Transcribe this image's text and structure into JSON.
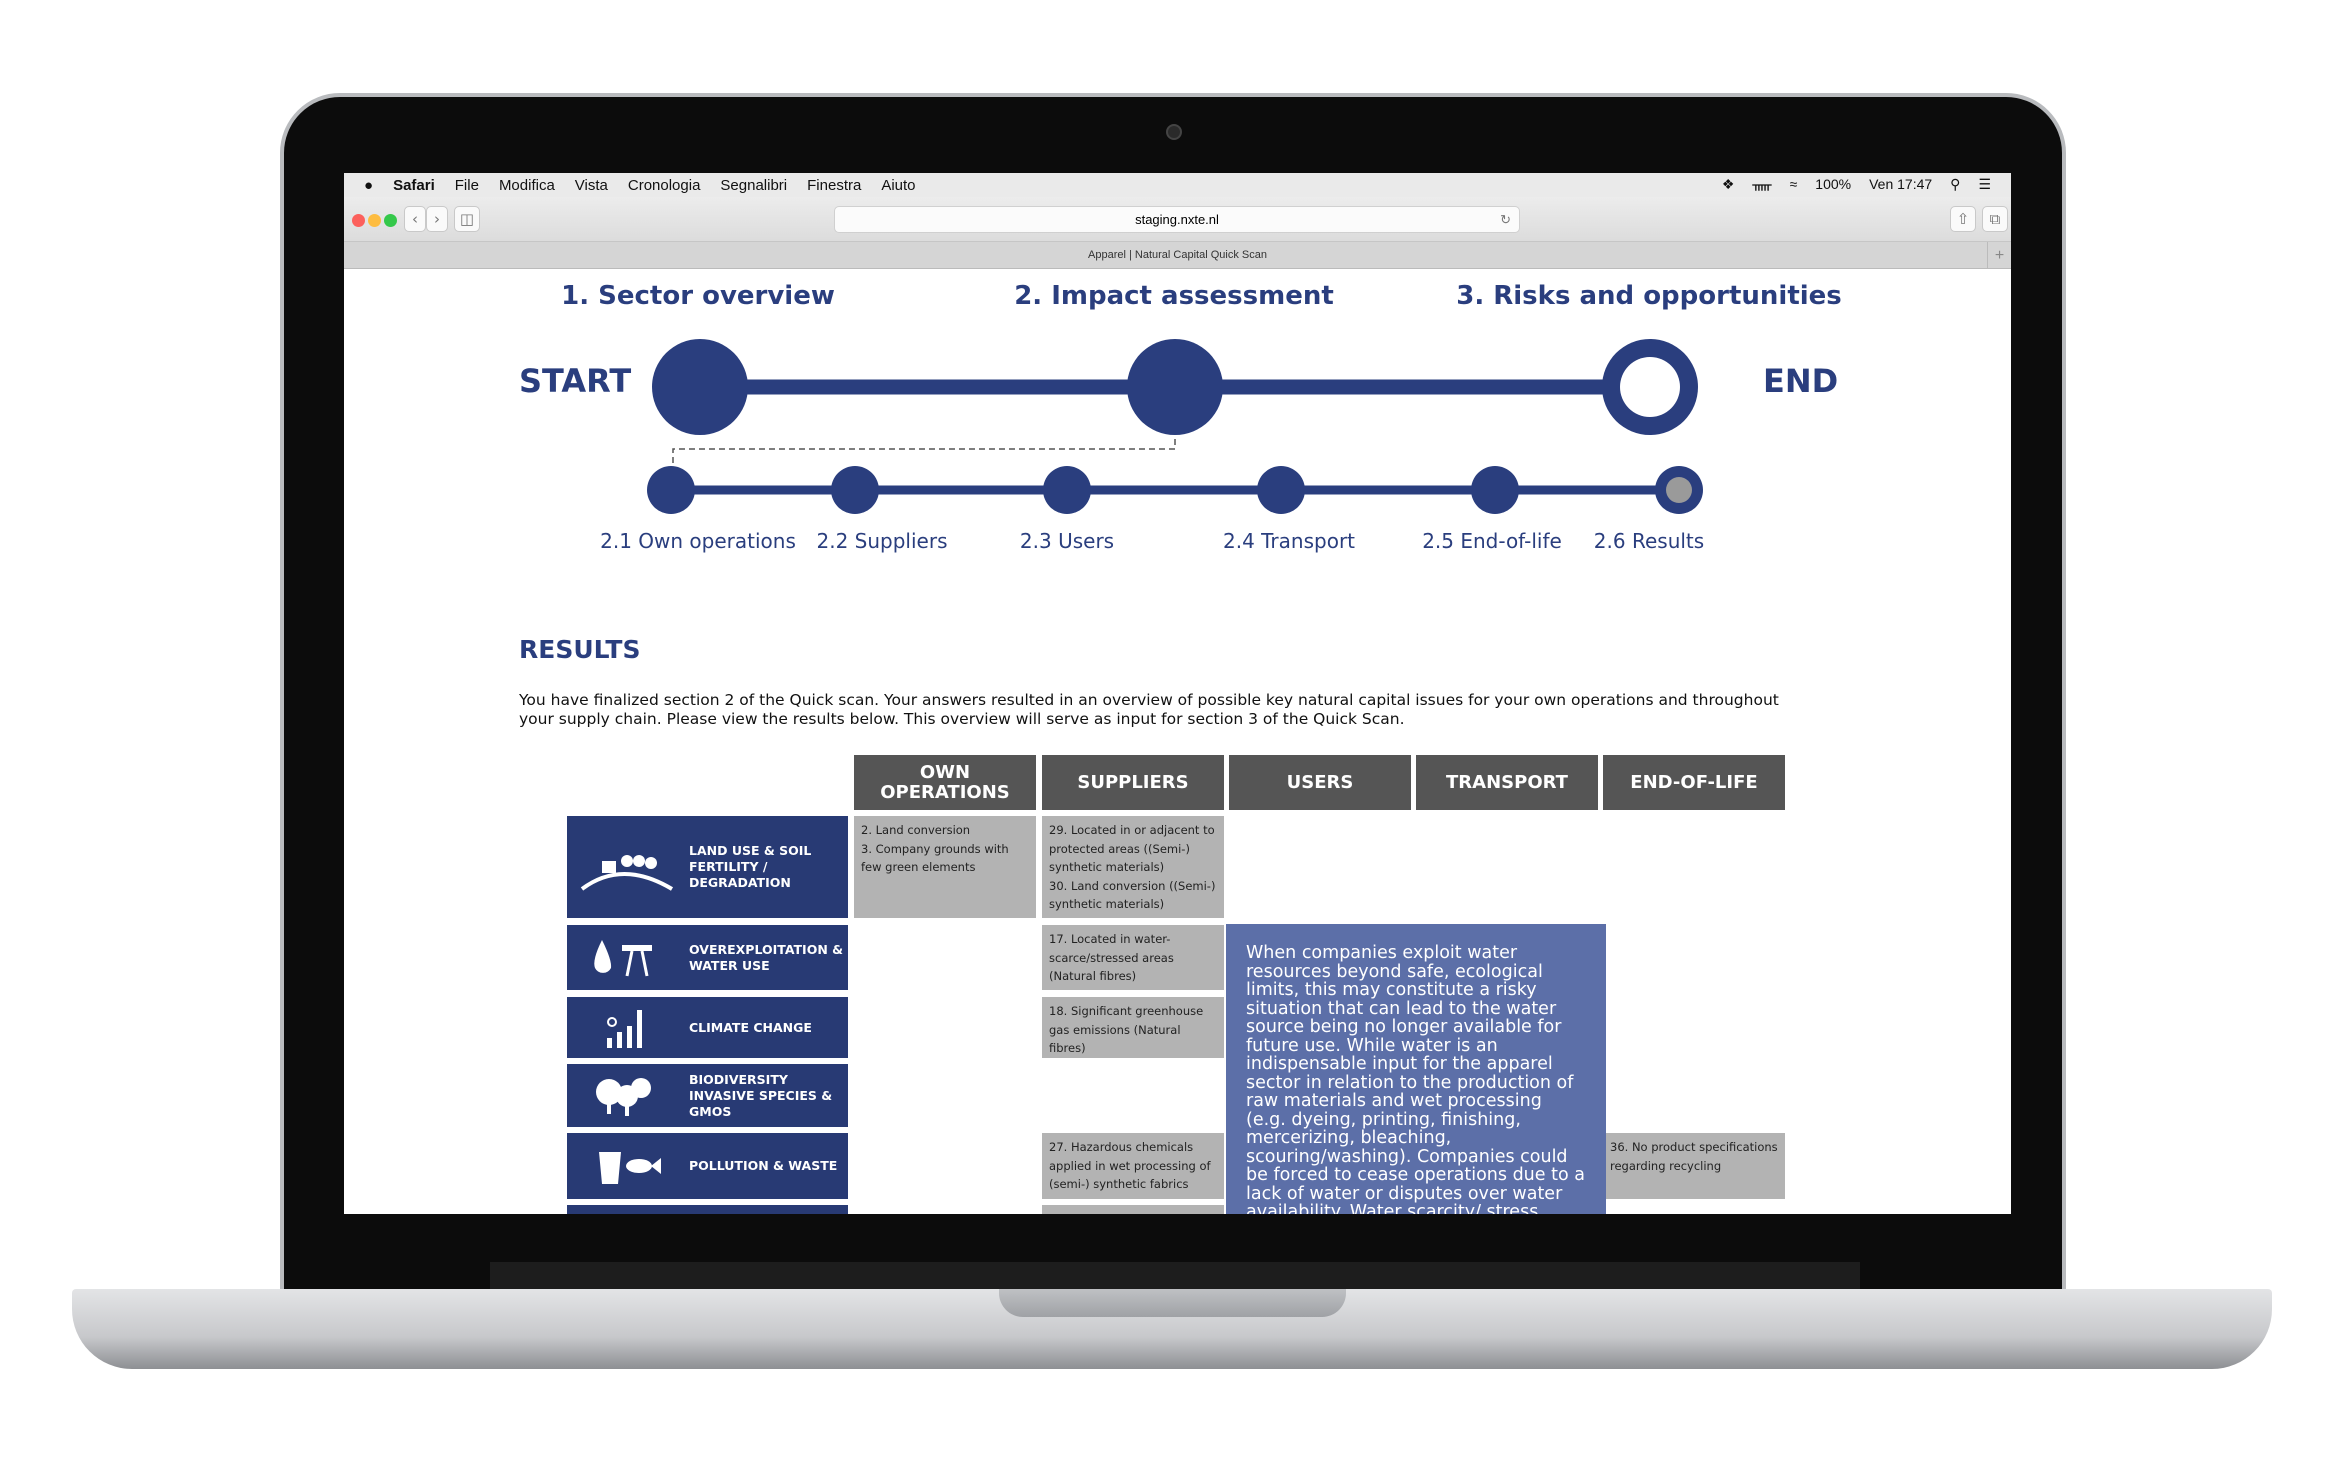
{
  "menubar": {
    "app": "Safari",
    "items": [
      "File",
      "Modifica",
      "Vista",
      "Cronologia",
      "Segnalibri",
      "Finestra",
      "Aiuto"
    ],
    "battery": "100%",
    "clock": "Ven 17:47"
  },
  "browser": {
    "url": "staging.nxte.nl",
    "tab_title": "Apparel | Natural Capital Quick Scan"
  },
  "steps": {
    "titles": [
      "1. Sector overview",
      "2. Impact assessment",
      "3. Risks and opportunities"
    ],
    "start": "START",
    "end": "END",
    "substeps": [
      "2.1 Own operations",
      "2.2 Suppliers",
      "2.3 Users",
      "2.4 Transport",
      "2.5 End-of-life",
      "2.6 Results"
    ]
  },
  "results": {
    "title": "RESULTS",
    "text": "You have finalized section 2 of the Quick scan. Your answers resulted in an overview of possible key natural capital issues for your own operations and throughout your supply chain. Please view the results below. This overview will serve as input for section 3 of the Quick Scan.",
    "columns": [
      "OWN OPERATIONS",
      "SUPPLIERS",
      "USERS",
      "TRANSPORT",
      "END-OF-LIFE"
    ],
    "categories": [
      "LAND USE & SOIL FERTILITY / DEGRADATION",
      "OVEREXPLOITATION & WATER USE",
      "CLIMATE CHANGE",
      "BIODIVERSITY INVASIVE SPECIES & GMOS",
      "POLLUTION & WASTE"
    ],
    "cells": {
      "land_own": [
        "2. Land conversion",
        "3. Company grounds with few green elements"
      ],
      "land_suppliers": [
        "29. Located in or adjacent to protected areas ((Semi-) synthetic materials)",
        "30. Land conversion ((Semi-) synthetic materials)"
      ],
      "water_suppliers": "17. Located in water-scarce/stressed areas (Natural fibres)",
      "climate_suppliers": "18. Significant greenhouse gas emissions (Natural fibres)",
      "pollution_suppliers": "27. Hazardous chemicals applied in wet processing of (semi-) synthetic fabrics",
      "pollution_eol": "36. No product specifications regarding recycling"
    },
    "tooltip": "When companies exploit water resources beyond safe, ecological limits, this may constitute a risky situation that can lead to the water source being no longer available for future use. While water is an indispensable input for the apparel sector in relation to the production of raw materials and wet processing (e.g. dyeing, printing, finishing, mercerizing, bleaching, scouring/washing). Companies could be forced to cease operations due to a lack of water or disputes over water availability. Water scarcity/ stress causes droughts, and destroys habitats and species living at these places."
  },
  "colors": {
    "navy": "#2a3e7e",
    "category": "#283a74",
    "header": "#555555",
    "cell": "#b3b3b3",
    "tooltip": "#5c6fa8"
  }
}
